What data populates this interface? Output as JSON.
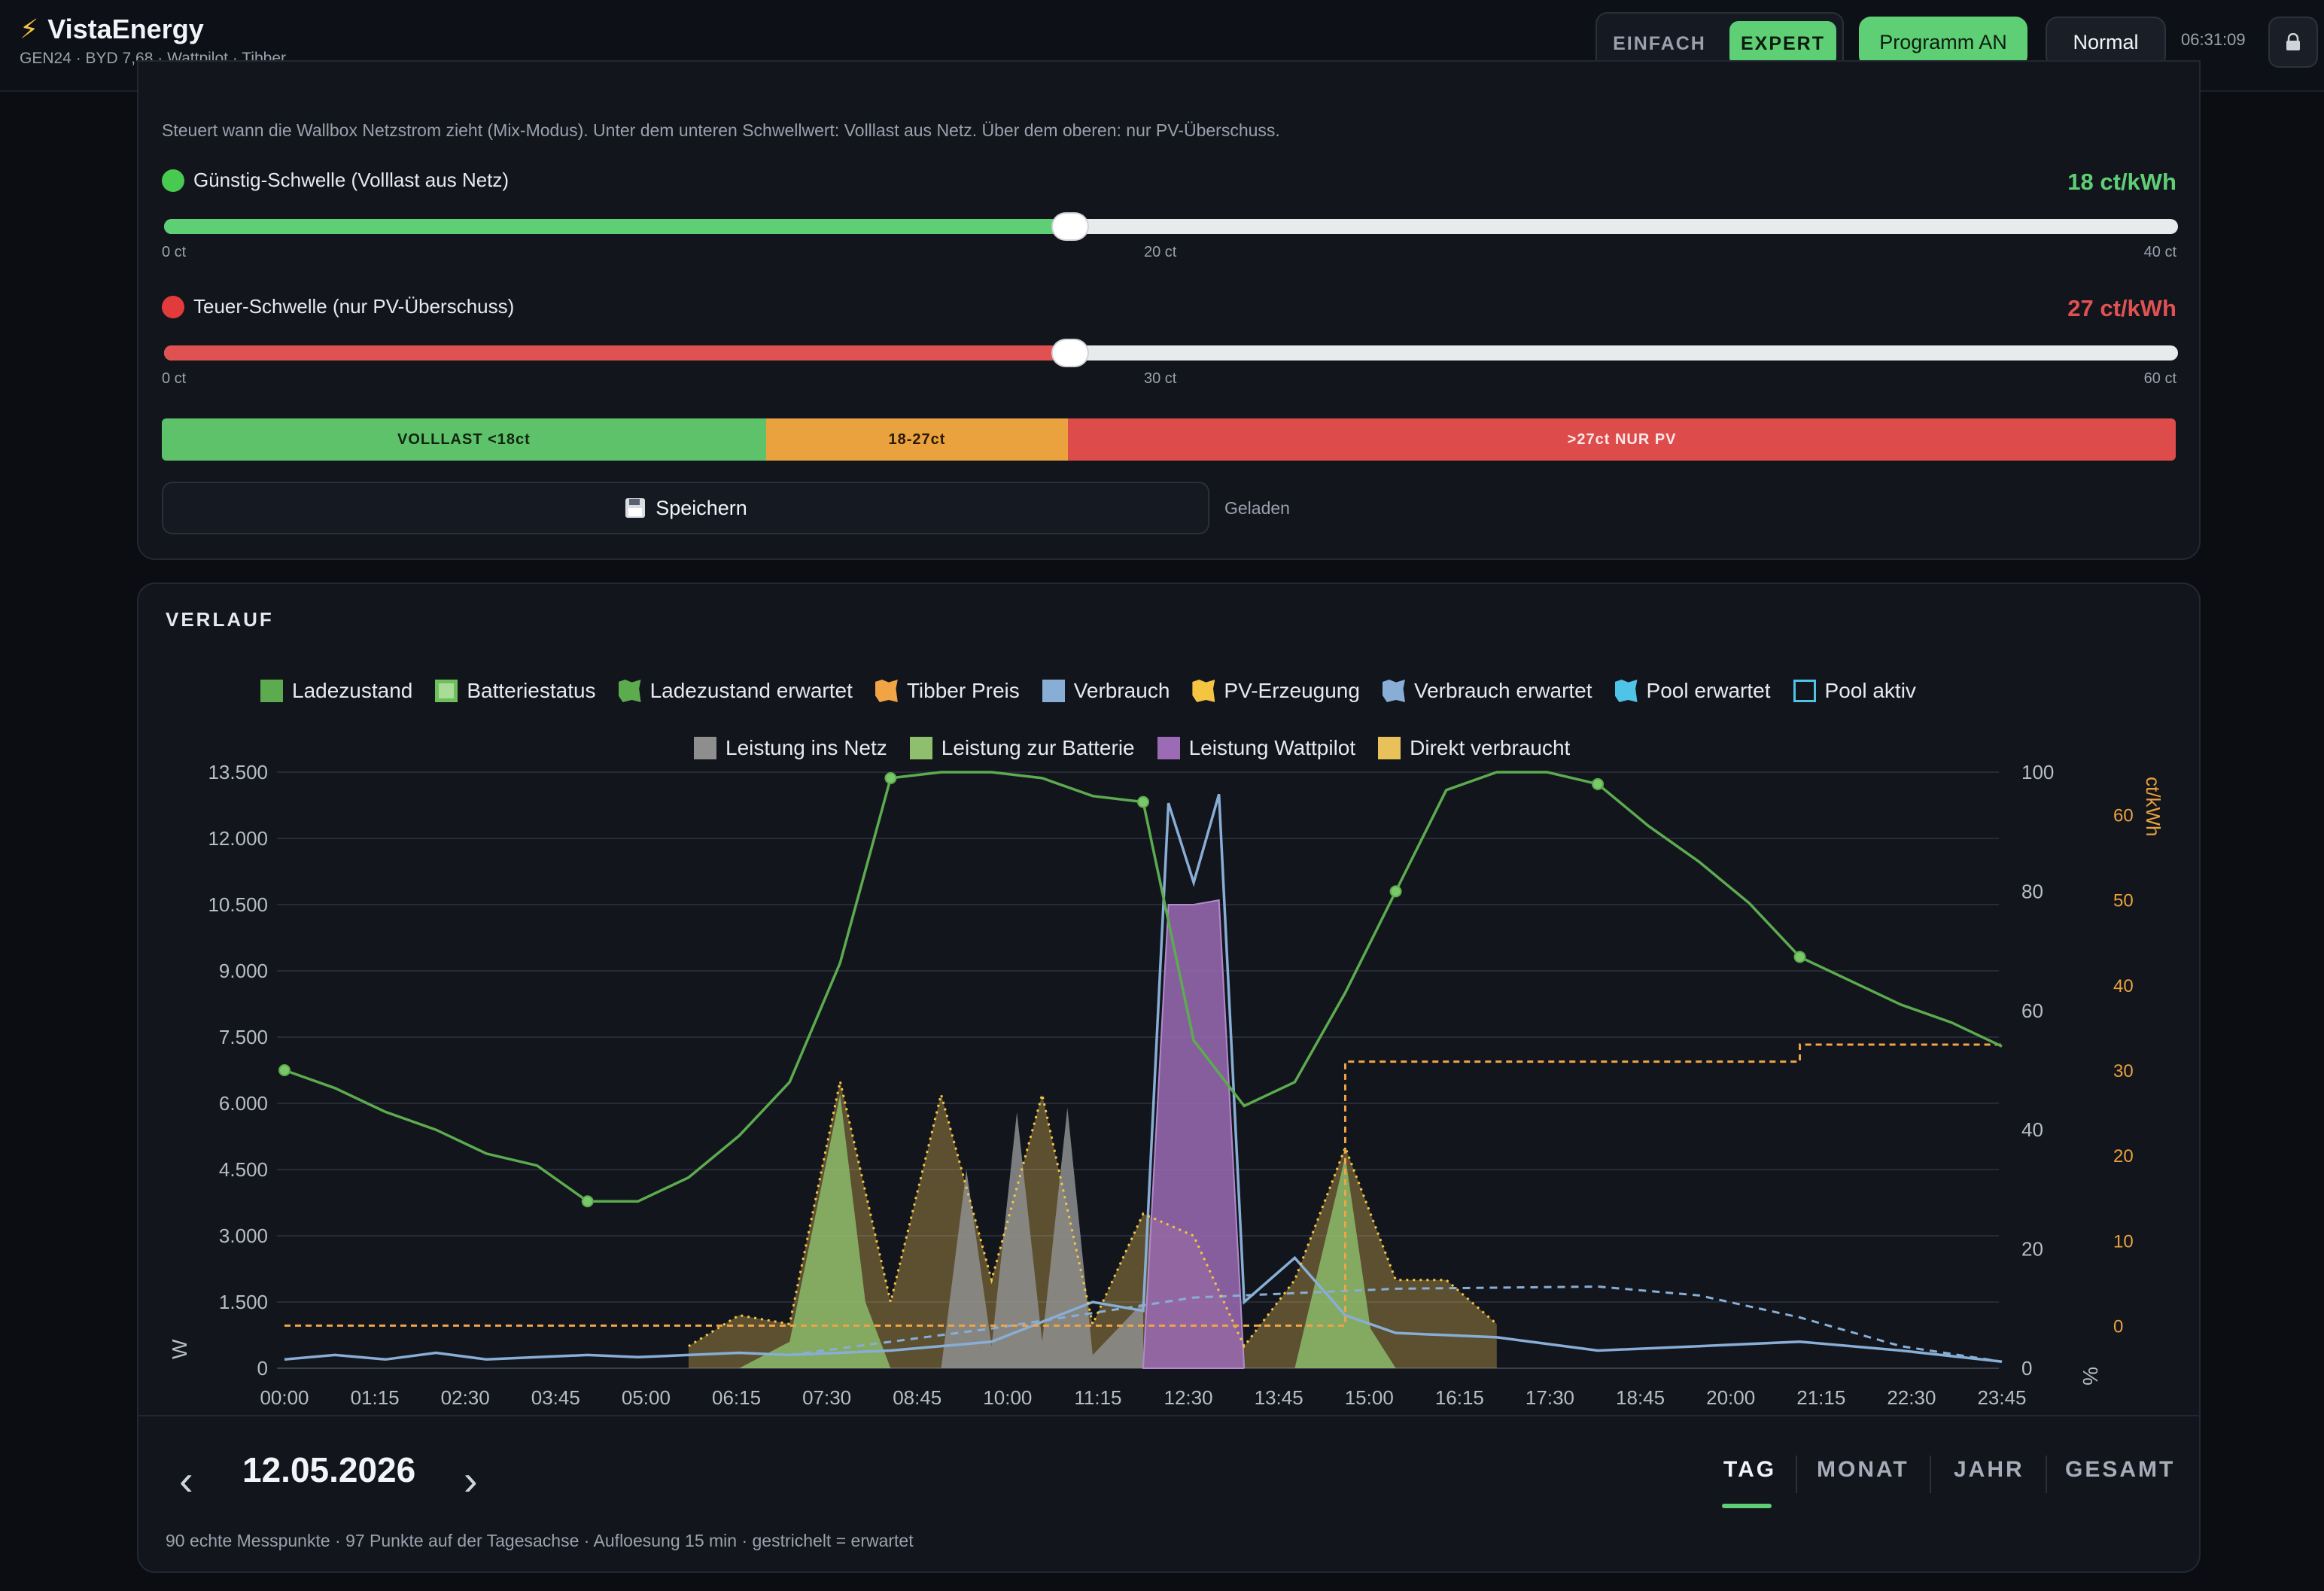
{
  "header": {
    "app_title": "VistaEnergy",
    "subtitle": "GEN24 · BYD 7,68 · Wattpilot · Tibber",
    "mode_simple": "EINFACH",
    "mode_expert": "EXPERT",
    "program_button": "Programm AN",
    "normal_button": "Normal",
    "clock": "06:31:09"
  },
  "wallbox": {
    "description": "Steuert wann die Wallbox Netzstrom zieht (Mix-Modus). Unter dem unteren Schwellwert: Volllast aus Netz. Über dem oberen: nur PV-Überschuss.",
    "cheap": {
      "label": "Günstig-Schwelle (Volllast aus Netz)",
      "value_text": "18 ct/kWh",
      "value": 18,
      "min": 0,
      "max": 40,
      "tick_min": "0 ct",
      "tick_mid": "20 ct",
      "tick_max": "40 ct",
      "color": "#5ecf74"
    },
    "expensive": {
      "label": "Teuer-Schwelle (nur PV-Überschuss)",
      "value_text": "27 ct/kWh",
      "value": 27,
      "min": 0,
      "max": 60,
      "tick_min": "0 ct",
      "tick_mid": "30 ct",
      "tick_max": "60 ct",
      "color": "#e05252"
    },
    "zones": {
      "full": "VOLLLAST <18ct",
      "mid": "18-27ct",
      "pv": ">27ct NUR PV"
    },
    "save_button": "Speichern",
    "save_status": "Geladen"
  },
  "history": {
    "title": "VERLAUF",
    "legend": [
      {
        "label": "Ladezustand",
        "color": "#5cab4f",
        "style": "fill"
      },
      {
        "label": "Batteriestatus",
        "color": "#7bc86a",
        "style": "framed"
      },
      {
        "label": "Ladezustand erwartet",
        "color": "#5cab4f",
        "style": "jagged"
      },
      {
        "label": "Tibber Preis",
        "color": "#f0a445",
        "style": "jagged"
      },
      {
        "label": "Verbrauch",
        "color": "#88aed6",
        "style": "fill"
      },
      {
        "label": "PV-Erzeugung",
        "color": "#f5c542",
        "style": "jagged"
      },
      {
        "label": "Verbrauch erwartet",
        "color": "#88aed6",
        "style": "jagged"
      },
      {
        "label": "Pool erwartet",
        "color": "#4fc3e8",
        "style": "jagged"
      },
      {
        "label": "Pool aktiv",
        "color": "#4fc3e8",
        "style": "outline"
      },
      {
        "label": "Leistung ins Netz",
        "color": "#8e8e8e",
        "style": "fill"
      },
      {
        "label": "Leistung zur Batterie",
        "color": "#8fbf6d",
        "style": "fill"
      },
      {
        "label": "Leistung Wattpilot",
        "color": "#9b6bb5",
        "style": "fill"
      },
      {
        "label": "Direkt verbraucht",
        "color": "#e8c15a",
        "style": "fill"
      }
    ],
    "date": "12.05.2026",
    "periods": [
      "TAG",
      "MONAT",
      "JAHR",
      "GESAMT"
    ],
    "active_period": "TAG",
    "footnote": "90 echte Messpunkte · 97 Punkte auf der Tagesachse · Aufloesung 15 min · gestrichelt = erwartet"
  },
  "chart_data": {
    "type": "area",
    "x_ticks": [
      "00:00",
      "01:15",
      "02:30",
      "03:45",
      "05:00",
      "06:15",
      "07:30",
      "08:45",
      "10:00",
      "11:15",
      "12:30",
      "13:45",
      "15:00",
      "16:15",
      "17:30",
      "18:45",
      "20:00",
      "21:15",
      "22:30",
      "23:45"
    ],
    "y_left": {
      "label": "W",
      "ticks": [
        "0",
        "1.500",
        "3.000",
        "4.500",
        "6.000",
        "7.500",
        "9.000",
        "10.500",
        "12.000",
        "13.500"
      ],
      "range": [
        0,
        13500
      ]
    },
    "y_right_pct": {
      "label": "%",
      "ticks": [
        "0",
        "20",
        "40",
        "60",
        "80",
        "100"
      ],
      "range": [
        0,
        100
      ]
    },
    "y_right_price": {
      "label": "ct/kWh",
      "ticks": [
        "0",
        "10",
        "20",
        "30",
        "40",
        "50",
        "60"
      ],
      "range": [
        -5,
        65
      ]
    },
    "series": [
      {
        "name": "Ladezustand",
        "unit": "%",
        "points": [
          [
            0,
            50
          ],
          [
            1,
            47
          ],
          [
            2,
            43
          ],
          [
            3,
            40
          ],
          [
            4,
            36
          ],
          [
            5,
            34
          ],
          [
            6,
            28
          ],
          [
            7,
            28
          ],
          [
            8,
            32
          ],
          [
            9,
            39
          ],
          [
            10,
            48
          ],
          [
            11,
            68
          ],
          [
            12,
            99
          ],
          [
            13,
            100
          ],
          [
            14,
            100
          ],
          [
            15,
            99
          ],
          [
            16,
            96
          ],
          [
            17,
            95
          ],
          [
            18,
            55
          ],
          [
            19,
            44
          ],
          [
            20,
            48
          ],
          [
            21,
            63
          ],
          [
            22,
            80
          ],
          [
            23,
            97
          ],
          [
            24,
            100
          ],
          [
            25,
            100
          ],
          [
            26,
            98
          ],
          [
            27,
            91
          ],
          [
            28,
            85
          ],
          [
            29,
            78
          ],
          [
            30,
            69
          ],
          [
            31,
            65
          ],
          [
            32,
            61
          ],
          [
            33,
            58
          ],
          [
            34,
            54
          ]
        ]
      },
      {
        "name": "Tibber Preis",
        "unit": "ct/kWh",
        "points": [
          [
            0,
            0
          ],
          [
            1,
            0
          ],
          [
            2,
            0
          ],
          [
            3,
            0
          ],
          [
            4,
            0
          ],
          [
            5,
            0
          ],
          [
            6,
            0
          ],
          [
            7,
            0
          ],
          [
            8,
            0
          ],
          [
            9,
            0
          ],
          [
            10,
            0
          ],
          [
            11,
            0
          ],
          [
            12,
            0
          ],
          [
            13,
            0
          ],
          [
            14,
            0
          ],
          [
            15,
            0
          ],
          [
            16,
            0
          ],
          [
            17,
            0
          ],
          [
            18,
            0
          ],
          [
            19,
            0
          ],
          [
            20,
            0
          ],
          [
            21,
            31
          ],
          [
            22,
            31
          ],
          [
            23,
            31
          ],
          [
            24,
            31
          ],
          [
            25,
            31
          ],
          [
            26,
            31
          ],
          [
            27,
            31
          ],
          [
            28,
            31
          ],
          [
            29,
            31
          ],
          [
            30,
            33
          ],
          [
            31,
            33
          ],
          [
            32,
            33
          ],
          [
            33,
            33
          ],
          [
            34,
            33
          ]
        ]
      },
      {
        "name": "Leistung Wattpilot",
        "unit": "W",
        "points": [
          [
            17,
            0
          ],
          [
            17.5,
            10500
          ],
          [
            18,
            10500
          ],
          [
            18.5,
            10600
          ],
          [
            19,
            0
          ]
        ]
      },
      {
        "name": "PV-Erzeugung",
        "unit": "W",
        "points": [
          [
            8,
            500
          ],
          [
            9,
            1200
          ],
          [
            10,
            1000
          ],
          [
            11,
            6500
          ],
          [
            12,
            1500
          ],
          [
            13,
            6200
          ],
          [
            14,
            2000
          ],
          [
            15,
            6200
          ],
          [
            16,
            1000
          ],
          [
            17,
            3500
          ],
          [
            18,
            3000
          ],
          [
            19,
            500
          ],
          [
            20,
            2000
          ],
          [
            21,
            5000
          ],
          [
            22,
            2000
          ],
          [
            23,
            2000
          ],
          [
            24,
            1000
          ]
        ]
      }
    ]
  }
}
